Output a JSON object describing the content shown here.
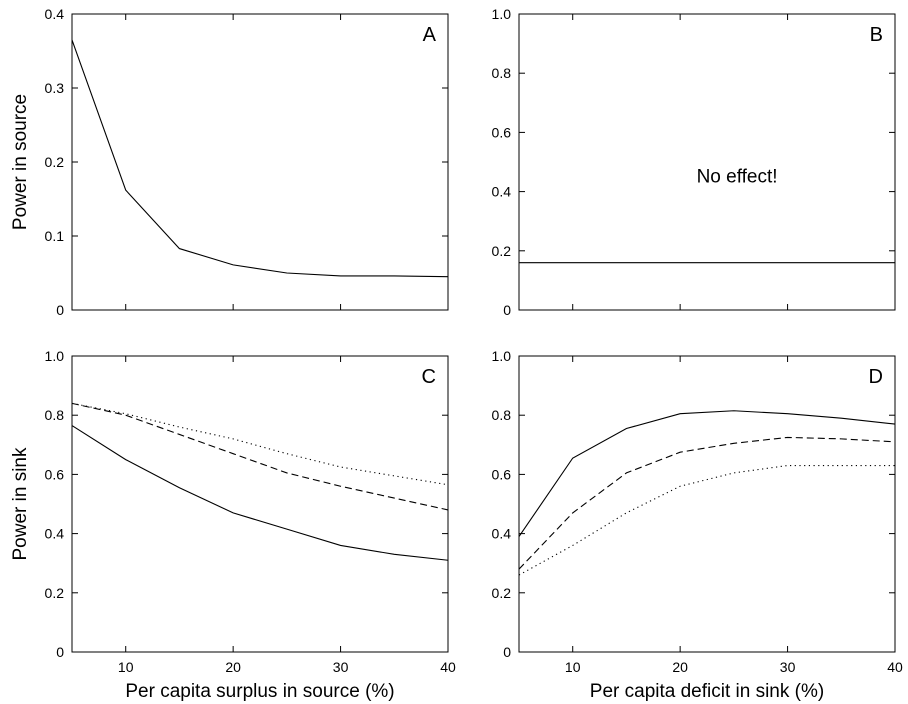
{
  "chart_data": [
    {
      "type": "line",
      "panel_label": "A",
      "xlabel": "",
      "ylabel": "Power in source",
      "xlim": [
        5,
        40
      ],
      "ylim": [
        0,
        0.4
      ],
      "xticks": [
        10,
        20,
        30,
        40
      ],
      "yticks": [
        0,
        0.1,
        0.2,
        0.3,
        0.4
      ],
      "show_xtick_labels": false,
      "annotation": "",
      "series": [
        {
          "style": "solid",
          "x": [
            5,
            10,
            15,
            20,
            25,
            30,
            35,
            40
          ],
          "y": [
            0.365,
            0.162,
            0.083,
            0.061,
            0.05,
            0.046,
            0.046,
            0.045
          ]
        }
      ]
    },
    {
      "type": "line",
      "panel_label": "B",
      "xlabel": "",
      "ylabel": "",
      "xlim": [
        5,
        40
      ],
      "ylim": [
        0,
        1.0
      ],
      "xticks": [
        10,
        20,
        30,
        40
      ],
      "yticks": [
        0,
        0.2,
        0.4,
        0.6,
        0.8,
        1.0
      ],
      "show_xtick_labels": false,
      "annotation": "No effect!",
      "series": [
        {
          "style": "solid",
          "x": [
            5,
            40
          ],
          "y": [
            0.16,
            0.16
          ]
        }
      ]
    },
    {
      "type": "line",
      "panel_label": "C",
      "xlabel": "Per capita surplus in source (%)",
      "ylabel": "Power in sink",
      "xlim": [
        5,
        40
      ],
      "ylim": [
        0,
        1.0
      ],
      "xticks": [
        10,
        20,
        30,
        40
      ],
      "yticks": [
        0,
        0.2,
        0.4,
        0.6,
        0.8,
        1.0
      ],
      "show_xtick_labels": true,
      "annotation": "",
      "series": [
        {
          "style": "solid",
          "x": [
            5,
            10,
            15,
            20,
            25,
            30,
            35,
            40
          ],
          "y": [
            0.765,
            0.65,
            0.555,
            0.47,
            0.415,
            0.36,
            0.33,
            0.31
          ]
        },
        {
          "style": "dashed",
          "x": [
            5,
            10,
            15,
            20,
            25,
            30,
            35,
            40
          ],
          "y": [
            0.84,
            0.8,
            0.735,
            0.67,
            0.605,
            0.56,
            0.52,
            0.48
          ]
        },
        {
          "style": "dotted",
          "x": [
            5,
            10,
            15,
            20,
            25,
            30,
            35,
            40
          ],
          "y": [
            0.84,
            0.805,
            0.76,
            0.72,
            0.67,
            0.625,
            0.595,
            0.565
          ]
        }
      ]
    },
    {
      "type": "line",
      "panel_label": "D",
      "xlabel": "Per capita deficit in sink (%)",
      "ylabel": "",
      "xlim": [
        5,
        40
      ],
      "ylim": [
        0,
        1.0
      ],
      "xticks": [
        10,
        20,
        30,
        40
      ],
      "yticks": [
        0,
        0.2,
        0.4,
        0.6,
        0.8,
        1.0
      ],
      "show_xtick_labels": true,
      "annotation": "",
      "series": [
        {
          "style": "solid",
          "x": [
            5,
            10,
            15,
            20,
            25,
            30,
            35,
            40
          ],
          "y": [
            0.39,
            0.655,
            0.755,
            0.805,
            0.815,
            0.805,
            0.79,
            0.77
          ]
        },
        {
          "style": "dashed",
          "x": [
            5,
            10,
            15,
            20,
            25,
            30,
            35,
            40
          ],
          "y": [
            0.28,
            0.47,
            0.605,
            0.675,
            0.705,
            0.725,
            0.72,
            0.71
          ]
        },
        {
          "style": "dotted",
          "x": [
            5,
            10,
            15,
            20,
            25,
            30,
            35,
            40
          ],
          "y": [
            0.26,
            0.36,
            0.47,
            0.56,
            0.605,
            0.63,
            0.63,
            0.63
          ]
        }
      ]
    }
  ]
}
